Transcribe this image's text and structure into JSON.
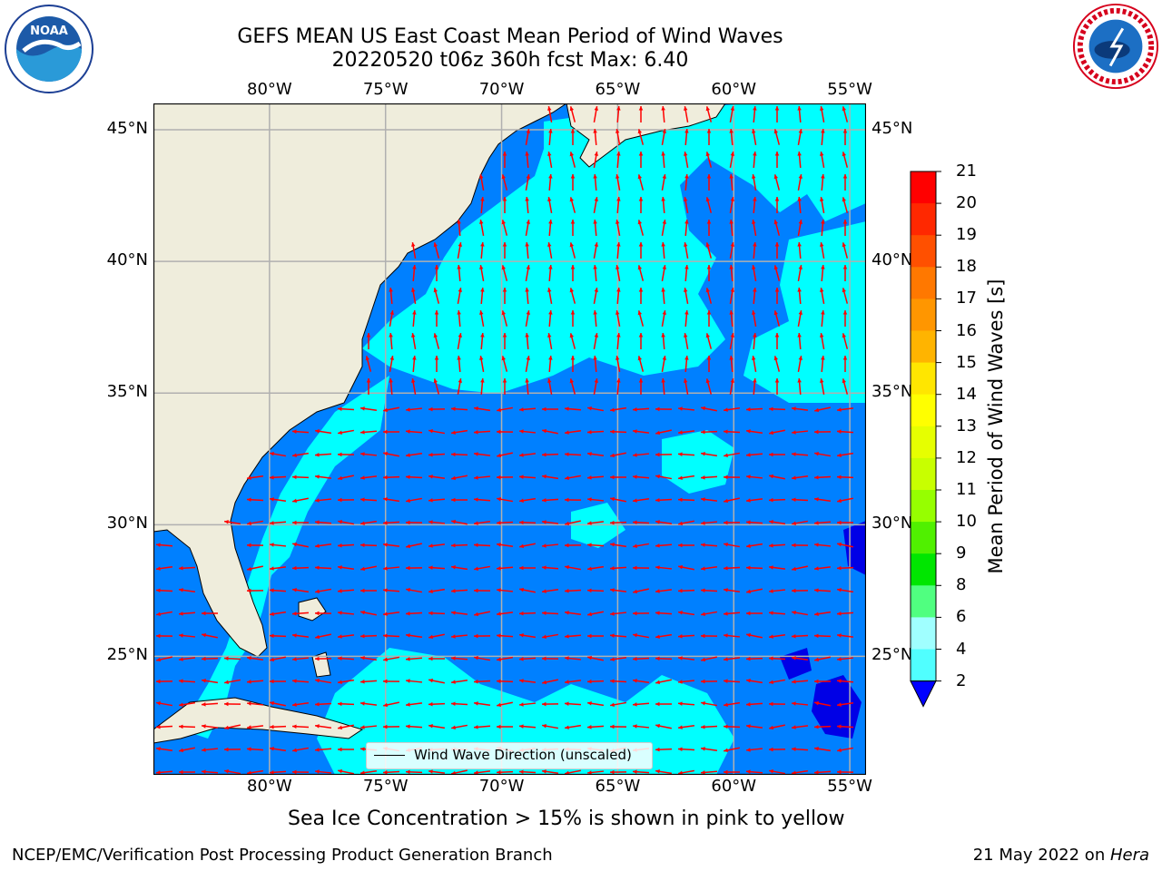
{
  "title": {
    "line1": "GEFS MEAN US East Coast Mean Period of Wind Waves",
    "line2": "20220520 t06z 360h fcst   Max: 6.40"
  },
  "logos": {
    "left": "noaa-logo",
    "left_text": "NOAA",
    "right": "nws-logo",
    "right_text": "NATIONAL WEATHER SERVICE"
  },
  "map": {
    "lon_ticks": [
      "80°W",
      "75°W",
      "70°W",
      "65°W",
      "60°W",
      "55°W"
    ],
    "lat_ticks": [
      "45°N",
      "40°N",
      "35°N",
      "30°N",
      "25°N"
    ],
    "lon_values": [
      -80,
      -75,
      -70,
      -65,
      -60,
      -55
    ],
    "lat_values": [
      45,
      40,
      35,
      30,
      25
    ],
    "extent": {
      "lon_min": -85,
      "lon_max": -54.3,
      "lat_min": 20.5,
      "lat_max": 46
    },
    "land_color": "#efeddc",
    "ocean_fill_2_4": "#0080ff",
    "ocean_fill_4_6": "#00ffff",
    "ocean_fill_lt2": "#0000e6",
    "arrow_color": "#ff0000",
    "grid_color": "#b0b0b0"
  },
  "legend": {
    "label": "Wind Wave Direction (unscaled)"
  },
  "colorbar": {
    "title": "Mean Period of Wind Waves [s]",
    "tick_labels": [
      "21",
      "20",
      "19",
      "18",
      "17",
      "16",
      "15",
      "14",
      "13",
      "12",
      "11",
      "10",
      "9",
      "8",
      "6",
      "4",
      "2"
    ],
    "colors": [
      "#ff0000",
      "#ff2800",
      "#ff5000",
      "#ff7800",
      "#ff9600",
      "#ffb400",
      "#ffe600",
      "#ffff00",
      "#e6ff00",
      "#c8ff00",
      "#96ff00",
      "#50f000",
      "#00e600",
      "#50ff80",
      "#a0ffff",
      "#50ffff",
      "#00ffff",
      "#0080ff"
    ],
    "under_color": "#0000ff"
  },
  "note": "Sea Ice Concentration > 15% is shown in pink to yellow",
  "footer": {
    "left": "NCEP/EMC/Verification Post Processing Product Generation Branch",
    "right_date": "21 May 2022 on ",
    "right_machine": "Hera"
  }
}
